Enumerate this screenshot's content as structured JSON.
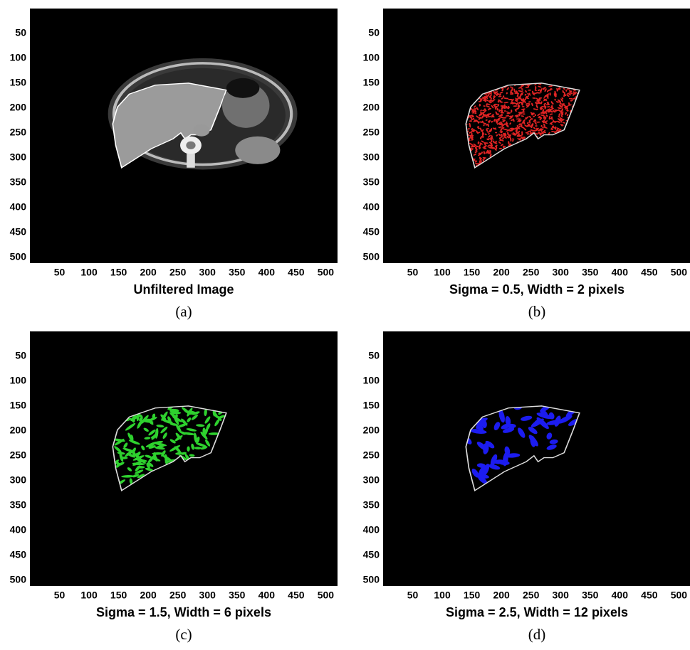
{
  "panels": [
    {
      "kind": "ct",
      "xlabel": "Unfiltered Image",
      "caption": "(a)",
      "xlim": [
        0,
        520
      ],
      "ylim": [
        0,
        512
      ],
      "xticks": [
        50,
        100,
        150,
        200,
        250,
        300,
        350,
        400,
        450,
        500
      ],
      "yticks": [
        50,
        100,
        150,
        200,
        250,
        300,
        350,
        400,
        450,
        500
      ]
    },
    {
      "kind": "vessel",
      "color": "#e02424",
      "xlabel": "Sigma = 0.5, Width = 2 pixels",
      "caption": "(b)",
      "xlim": [
        0,
        520
      ],
      "ylim": [
        0,
        512
      ],
      "xticks": [
        50,
        100,
        150,
        200,
        250,
        300,
        350,
        400,
        450,
        500
      ],
      "yticks": [
        50,
        100,
        150,
        200,
        250,
        300,
        350,
        400,
        450,
        500
      ]
    },
    {
      "kind": "vessel",
      "color": "#2ed12e",
      "xlabel": "Sigma = 1.5, Width = 6 pixels",
      "caption": "(c)",
      "xlim": [
        0,
        520
      ],
      "ylim": [
        0,
        512
      ],
      "xticks": [
        50,
        100,
        150,
        200,
        250,
        300,
        350,
        400,
        450,
        500
      ],
      "yticks": [
        50,
        100,
        150,
        200,
        250,
        300,
        350,
        400,
        450,
        500
      ]
    },
    {
      "kind": "vessel",
      "color": "#1c1cf0",
      "xlabel": "Sigma = 2.5, Width = 12 pixels",
      "caption": "(d)",
      "xlim": [
        0,
        520
      ],
      "ylim": [
        0,
        512
      ],
      "xticks": [
        50,
        100,
        150,
        200,
        250,
        300,
        350,
        400,
        450,
        500
      ],
      "yticks": [
        50,
        100,
        150,
        200,
        250,
        300,
        350,
        400,
        450,
        500
      ]
    }
  ]
}
